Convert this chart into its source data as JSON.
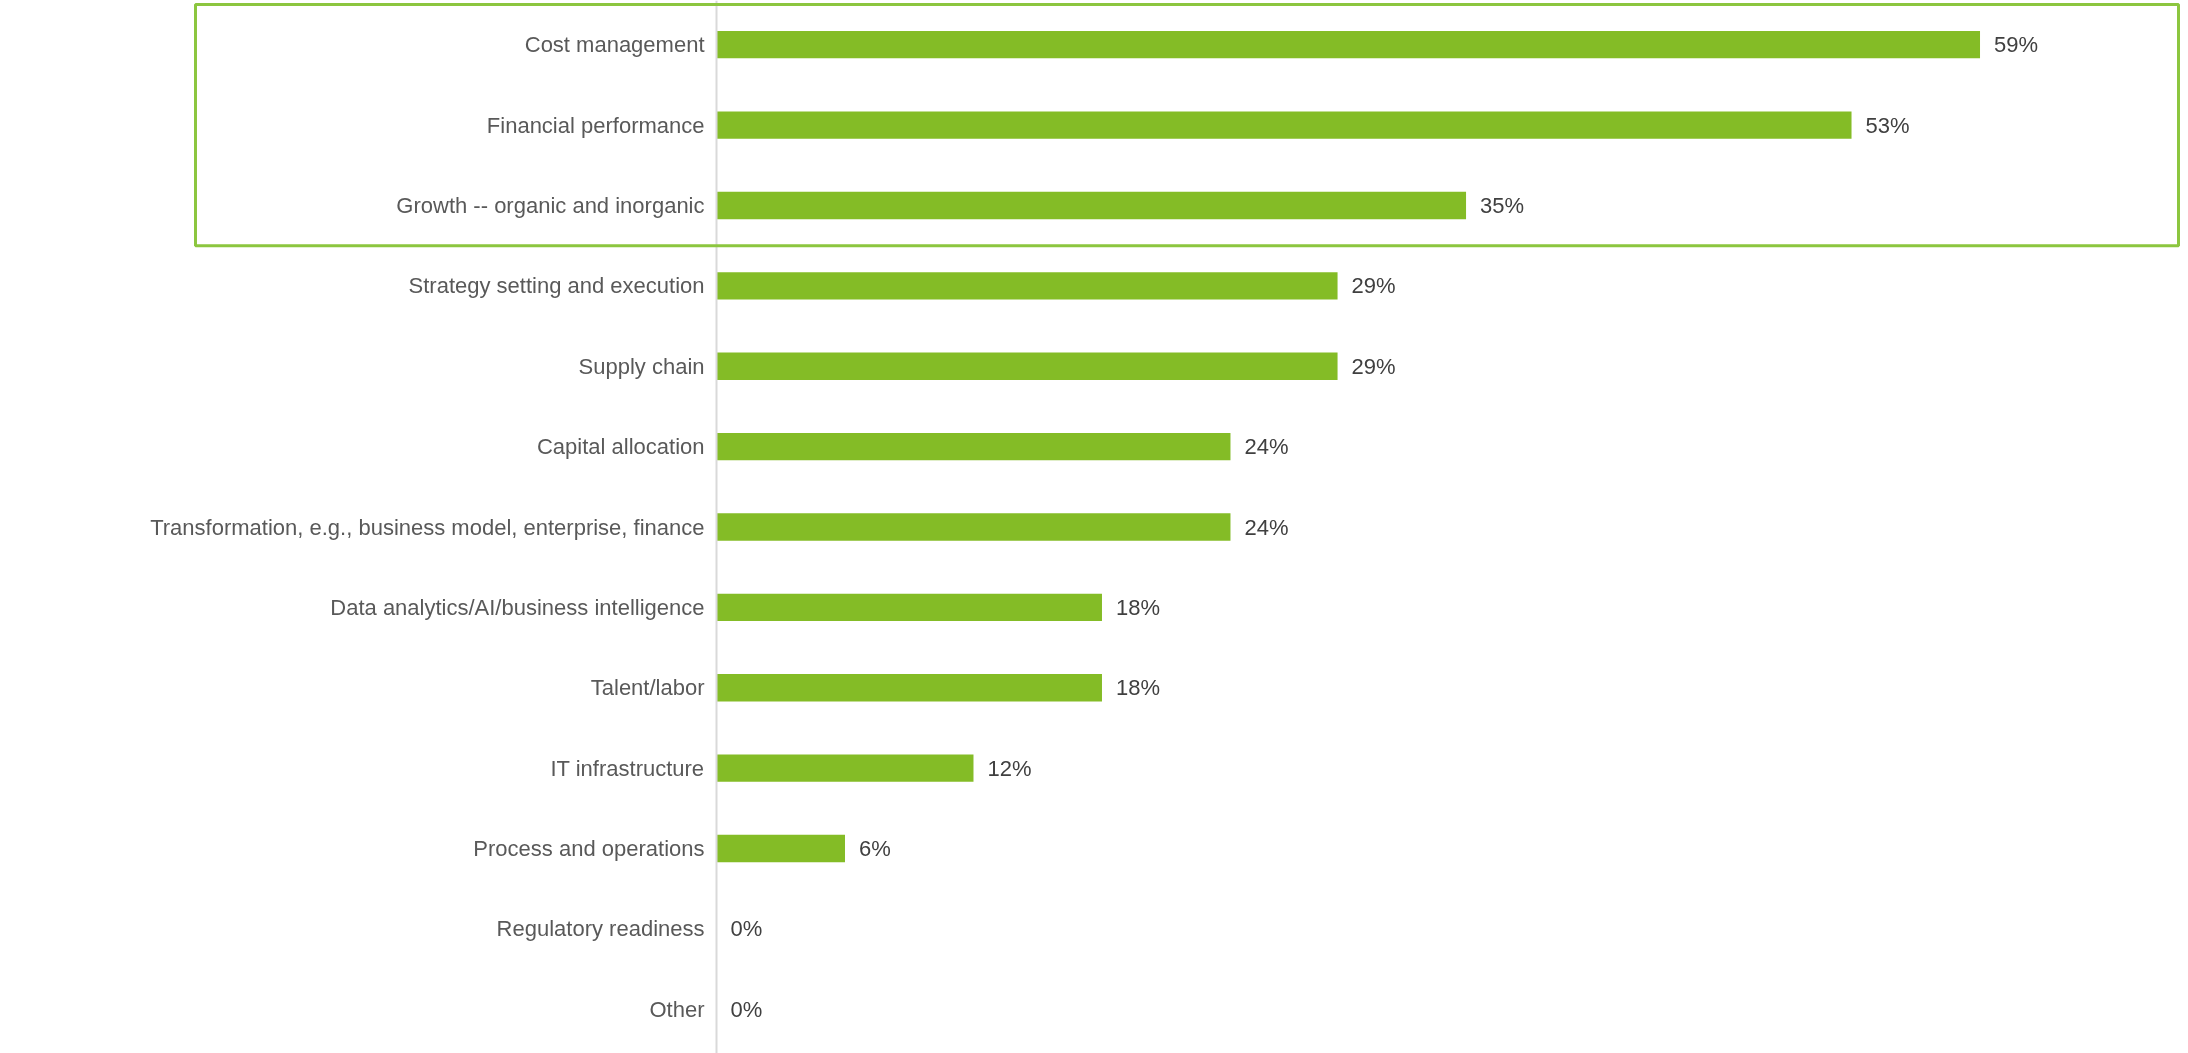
{
  "chart_data": {
    "type": "bar",
    "orientation": "horizontal",
    "categories": [
      "Cost management",
      "Financial performance",
      "Growth -- organic and inorganic",
      "Strategy setting and execution",
      "Supply chain",
      "Capital allocation",
      "Transformation, e.g., business model, enterprise, finance",
      "Data analytics/AI/business intelligence",
      "Talent/labor",
      "IT infrastructure",
      "Process and operations",
      "Regulatory readiness",
      "Other"
    ],
    "values": [
      59,
      53,
      35,
      29,
      29,
      24,
      24,
      18,
      18,
      12,
      6,
      0,
      0
    ],
    "value_labels": [
      "59%",
      "53%",
      "35%",
      "29%",
      "29%",
      "24%",
      "24%",
      "18%",
      "18%",
      "12%",
      "6%",
      "0%",
      "0%"
    ],
    "color": "#84bc26"
  }
}
